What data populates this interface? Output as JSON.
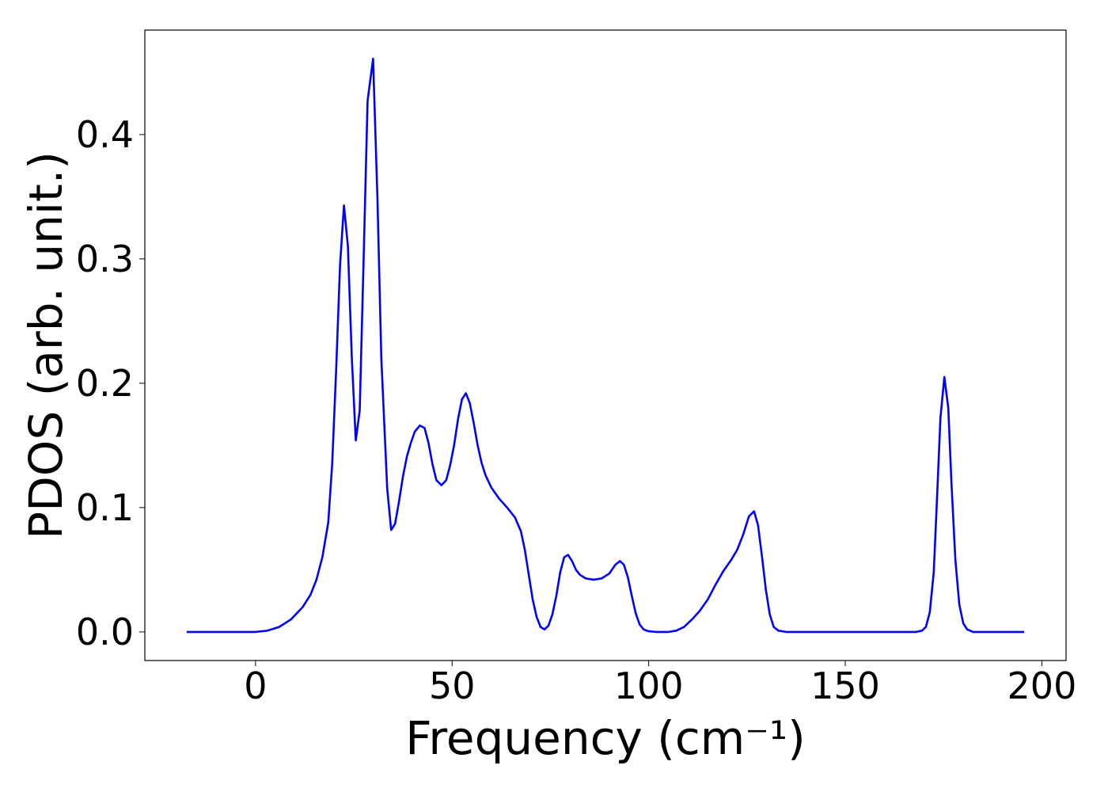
{
  "chart_data": {
    "type": "line",
    "xlabel": "Frequency (cm⁻¹)",
    "ylabel": "PDOS (arb. unit.)",
    "xlim": [
      -28.15,
      206.15
    ],
    "ylim": [
      -0.023,
      0.484
    ],
    "xticks": [
      0,
      50,
      100,
      150,
      200
    ],
    "yticks": [
      {
        "value": 0,
        "label": "0.0"
      },
      0.1,
      0.2,
      0.3,
      0.4
    ],
    "x": [
      -17.5,
      0,
      3,
      6,
      9,
      12,
      14,
      15.5,
      17,
      18.5,
      19.5,
      20.5,
      21.5,
      22.5,
      23.5,
      24.5,
      25.5,
      26.5,
      27.5,
      28.5,
      29.9,
      31,
      32,
      33.5,
      34.5,
      35.5,
      36.5,
      37.5,
      38.5,
      39.5,
      40.5,
      41.8,
      43,
      44,
      45,
      46,
      47.3,
      48.5,
      49.5,
      50.5,
      51.5,
      52.5,
      53.5,
      54.5,
      55.5,
      56.5,
      57.5,
      58.5,
      60,
      62,
      64,
      66,
      67.5,
      68.5,
      69.5,
      70.5,
      71.5,
      72.5,
      73.5,
      74.5,
      75.5,
      76.5,
      77.5,
      78.5,
      79.5,
      80.5,
      81.5,
      82.5,
      84,
      86,
      88,
      90,
      91.5,
      92.7,
      93.7,
      94.7,
      95.7,
      96.7,
      97.7,
      98.7,
      100,
      102,
      105,
      107,
      109,
      111,
      113,
      115,
      117,
      119,
      121,
      122.5,
      124,
      125.5,
      126.8,
      127.8,
      128.8,
      129.8,
      130.8,
      131.8,
      133,
      135,
      168,
      169.5,
      170.5,
      171.5,
      172.5,
      173.3,
      174.2,
      175.2,
      176.2,
      177,
      178,
      179,
      180,
      181,
      182.5,
      195.5
    ],
    "series": [
      {
        "color": "#0000ff",
        "values": [
          0,
          0,
          0.001,
          0.004,
          0.01,
          0.02,
          0.03,
          0.042,
          0.06,
          0.088,
          0.135,
          0.21,
          0.295,
          0.343,
          0.31,
          0.22,
          0.154,
          0.178,
          0.3,
          0.427,
          0.461,
          0.35,
          0.22,
          0.115,
          0.082,
          0.087,
          0.105,
          0.125,
          0.141,
          0.152,
          0.161,
          0.166,
          0.164,
          0.152,
          0.135,
          0.122,
          0.118,
          0.122,
          0.134,
          0.15,
          0.171,
          0.187,
          0.192,
          0.184,
          0.168,
          0.15,
          0.136,
          0.126,
          0.116,
          0.107,
          0.1,
          0.092,
          0.081,
          0.066,
          0.046,
          0.026,
          0.012,
          0.004,
          0.002,
          0.005,
          0.014,
          0.029,
          0.048,
          0.06,
          0.062,
          0.057,
          0.05,
          0.046,
          0.043,
          0.042,
          0.043,
          0.047,
          0.054,
          0.057,
          0.054,
          0.044,
          0.029,
          0.015,
          0.006,
          0.002,
          0.0005,
          0,
          0,
          0.001,
          0.004,
          0.01,
          0.017,
          0.026,
          0.038,
          0.049,
          0.058,
          0.066,
          0.078,
          0.093,
          0.097,
          0.086,
          0.061,
          0.034,
          0.014,
          0.004,
          0.001,
          0,
          0,
          0.001,
          0.004,
          0.016,
          0.048,
          0.105,
          0.172,
          0.205,
          0.18,
          0.12,
          0.058,
          0.022,
          0.007,
          0.002,
          0,
          0
        ]
      }
    ]
  }
}
